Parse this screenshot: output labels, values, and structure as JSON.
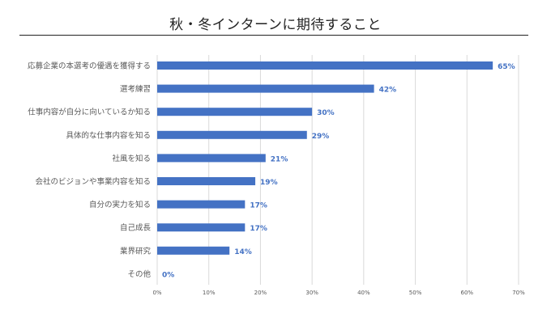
{
  "chart_data": {
    "type": "bar",
    "orientation": "horizontal",
    "title": "秋・冬インターンに期待すること",
    "categories": [
      "応募企業の本選考の優遇を獲得する",
      "選考練習",
      "仕事内容が自分に向いているか知る",
      "具体的な仕事内容を知る",
      "社風を知る",
      "会社のビジョンや事業内容を知る",
      "自分の実力を知る",
      "自己成長",
      "業界研究",
      "その他"
    ],
    "values": [
      65,
      42,
      30,
      29,
      21,
      19,
      17,
      17,
      14,
      0
    ],
    "value_labels": [
      "65%",
      "42%",
      "30%",
      "29%",
      "21%",
      "19%",
      "17%",
      "17%",
      "14%",
      "0%"
    ],
    "xlim": [
      0,
      70
    ],
    "x_ticks": [
      "0%",
      "10%",
      "20%",
      "30%",
      "40%",
      "50%",
      "60%",
      "70%"
    ],
    "grid": "vertical",
    "legend": "none",
    "bar_color": "#4472C4",
    "label_color": "#4472C4"
  }
}
